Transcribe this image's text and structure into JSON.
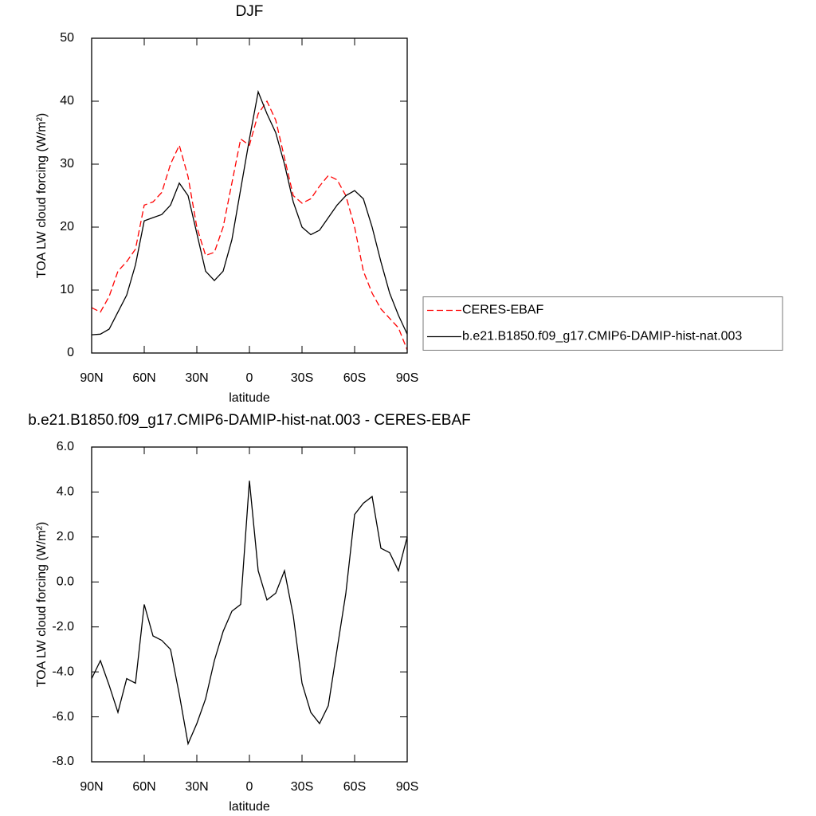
{
  "chart_data": [
    {
      "type": "line",
      "title": "DJF",
      "xlabel": "latitude",
      "ylabel": "TOA LW cloud forcing (W/m²)",
      "x": [
        90,
        85,
        80,
        75,
        70,
        65,
        60,
        55,
        50,
        45,
        40,
        35,
        30,
        25,
        20,
        15,
        10,
        5,
        0,
        -5,
        -10,
        -15,
        -20,
        -25,
        -30,
        -35,
        -40,
        -45,
        -50,
        -55,
        -60,
        -65,
        -70,
        -75,
        -80,
        -85,
        -90
      ],
      "series": [
        {
          "name": "CERES-EBAF",
          "color": "#ff0000",
          "linestyle": "dashed",
          "values": [
            7.2,
            6.5,
            9,
            13,
            14.5,
            16.5,
            23.5,
            24,
            25.5,
            30,
            33,
            28,
            20,
            15.5,
            16,
            20,
            27,
            34,
            33,
            38,
            40,
            37,
            31,
            25,
            23.8,
            24.5,
            26.5,
            28.2,
            27.5,
            25,
            20,
            13,
            9.5,
            7,
            5.5,
            4,
            0.5
          ]
        },
        {
          "name": "b.e21.B1850.f09_g17.CMIP6-DAMIP-hist-nat.003",
          "color": "#000000",
          "linestyle": "solid",
          "values": [
            2.9,
            3,
            3.8,
            6.5,
            9.2,
            14,
            21,
            21.5,
            22,
            23.5,
            27,
            25,
            19,
            13,
            11.5,
            13,
            18,
            26,
            34,
            41.5,
            38,
            35,
            30,
            24,
            20,
            18.8,
            19.5,
            21.5,
            23.5,
            25,
            25.8,
            24.5,
            20,
            14.5,
            9.5,
            6,
            3
          ]
        }
      ],
      "xlim": [
        90,
        -90
      ],
      "xticks": [
        {
          "value": 90,
          "label": "90N"
        },
        {
          "value": 60,
          "label": "60N"
        },
        {
          "value": 30,
          "label": "30N"
        },
        0,
        {
          "value": -30,
          "label": "30S"
        },
        {
          "value": -60,
          "label": "60S"
        },
        {
          "value": -90,
          "label": "90S"
        }
      ],
      "ylim": [
        0,
        50
      ],
      "yticks": [
        0,
        10,
        20,
        30,
        40,
        50
      ],
      "legend": "right"
    },
    {
      "type": "line",
      "title": "b.e21.B1850.f09_g17.CMIP6-DAMIP-hist-nat.003 - CERES-EBAF",
      "xlabel": "latitude",
      "ylabel": "TOA LW cloud forcing (W/m²)",
      "x": [
        90,
        85,
        80,
        75,
        70,
        65,
        60,
        55,
        50,
        45,
        40,
        35,
        30,
        25,
        20,
        15,
        10,
        5,
        0,
        -5,
        -10,
        -15,
        -20,
        -25,
        -30,
        -35,
        -40,
        -45,
        -50,
        -55,
        -60,
        -65,
        -70,
        -75,
        -80,
        -85,
        -90
      ],
      "values": [
        -4.3,
        -3.5,
        -4.6,
        -5.8,
        -4.3,
        -4.5,
        -1,
        -2.4,
        -2.6,
        -3,
        -5,
        -7.2,
        -6.3,
        -5.2,
        -3.5,
        -2.2,
        -1.3,
        -1,
        4.5,
        0.5,
        -0.8,
        -0.5,
        0.5,
        -1.5,
        -4.5,
        -5.8,
        -6.3,
        -5.5,
        -3,
        -0.5,
        3,
        3.5,
        3.8,
        1.5,
        1.3,
        0.5,
        2
      ],
      "color": "#000000",
      "xlim": [
        90,
        -90
      ],
      "xticks": [
        {
          "value": 90,
          "label": "90N"
        },
        {
          "value": 60,
          "label": "60N"
        },
        {
          "value": 30,
          "label": "30N"
        },
        0,
        {
          "value": -30,
          "label": "30S"
        },
        {
          "value": -60,
          "label": "60S"
        },
        {
          "value": -90,
          "label": "90S"
        }
      ],
      "ylim": [
        -8,
        6
      ],
      "yticks": [
        {
          "value": -8,
          "label": "-8.0"
        },
        {
          "value": -6,
          "label": "-6.0"
        },
        {
          "value": -4,
          "label": "-4.0"
        },
        {
          "value": -2,
          "label": "-2.0"
        },
        {
          "value": 0,
          "label": "0.0"
        },
        {
          "value": 2,
          "label": "2.0"
        },
        {
          "value": 4,
          "label": "4.0"
        },
        {
          "value": 6,
          "label": "6.0"
        }
      ]
    }
  ]
}
